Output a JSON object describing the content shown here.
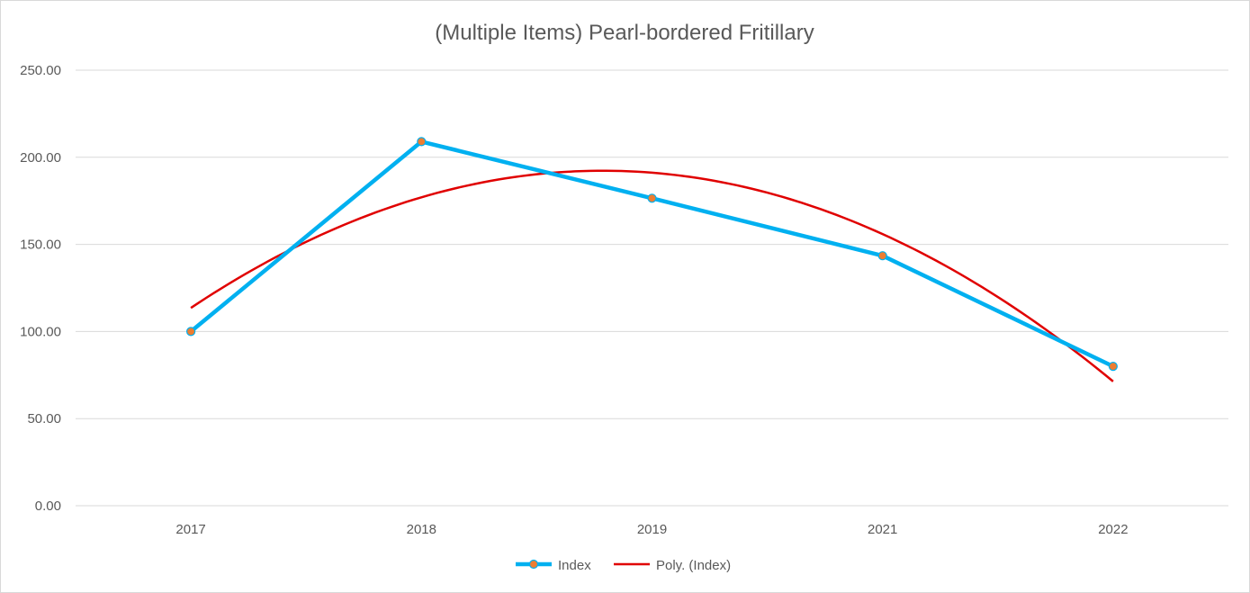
{
  "chart_data": {
    "type": "line",
    "title": "(Multiple Items) Pearl-bordered Fritillary",
    "categories": [
      "2017",
      "2018",
      "2019",
      "2021",
      "2022"
    ],
    "series": [
      {
        "name": "Index",
        "values": [
          100.0,
          209.0,
          176.5,
          143.5,
          80.0
        ],
        "color": "#00b0f0",
        "marker_color": "#ed7d31"
      }
    ],
    "trendline": {
      "name": "Poly. (Index)",
      "type": "polynomial",
      "order": 2,
      "of_series": "Index",
      "color": "#e00000"
    },
    "ylim": [
      0,
      250
    ],
    "yticks": [
      "0.00",
      "50.00",
      "100.00",
      "150.00",
      "200.00",
      "250.00"
    ],
    "grid": true,
    "legend_position": "bottom"
  }
}
